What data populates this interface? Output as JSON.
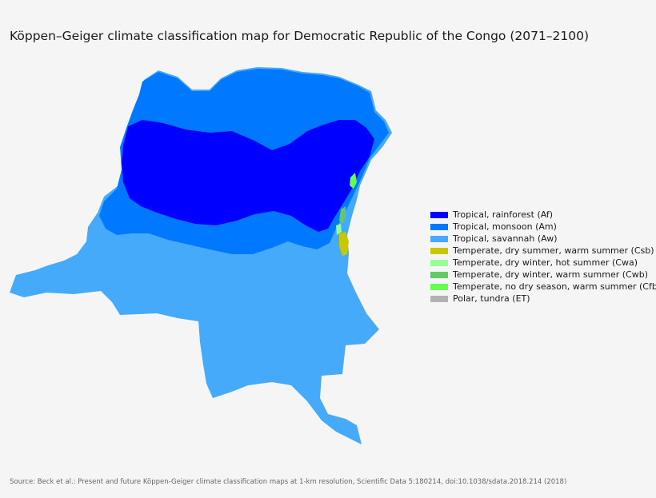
{
  "title": "Köppen–Geiger climate classification map for Democratic Republic of the Congo (2071–2100)",
  "legend": [
    {
      "label": "Tropical, rainforest (Af)",
      "color": "#0000ff"
    },
    {
      "label": "Tropical, monsoon (Am)",
      "color": "#0078ff"
    },
    {
      "label": "Tropical, savannah (Aw)",
      "color": "#46aafa"
    },
    {
      "label": "Temperate, dry summer, warm summer (Csb)",
      "color": "#c8c800"
    },
    {
      "label": "Temperate, dry winter, hot summer (Cwa)",
      "color": "#96ff96"
    },
    {
      "label": "Temperate, dry winter, warm summer (Cwb)",
      "color": "#64c864"
    },
    {
      "label": "Temperate, no dry season, warm summer (Cfb)",
      "color": "#64ff50"
    },
    {
      "label": "Polar, tundra (ET)",
      "color": "#b2b2b2"
    }
  ],
  "source": "Source: Beck et al.: Present and future Köppen-Geiger climate classification maps at 1-km resolution, Scientific Data 5:180214, doi:10.1038/sdata.2018.214 (2018)"
}
